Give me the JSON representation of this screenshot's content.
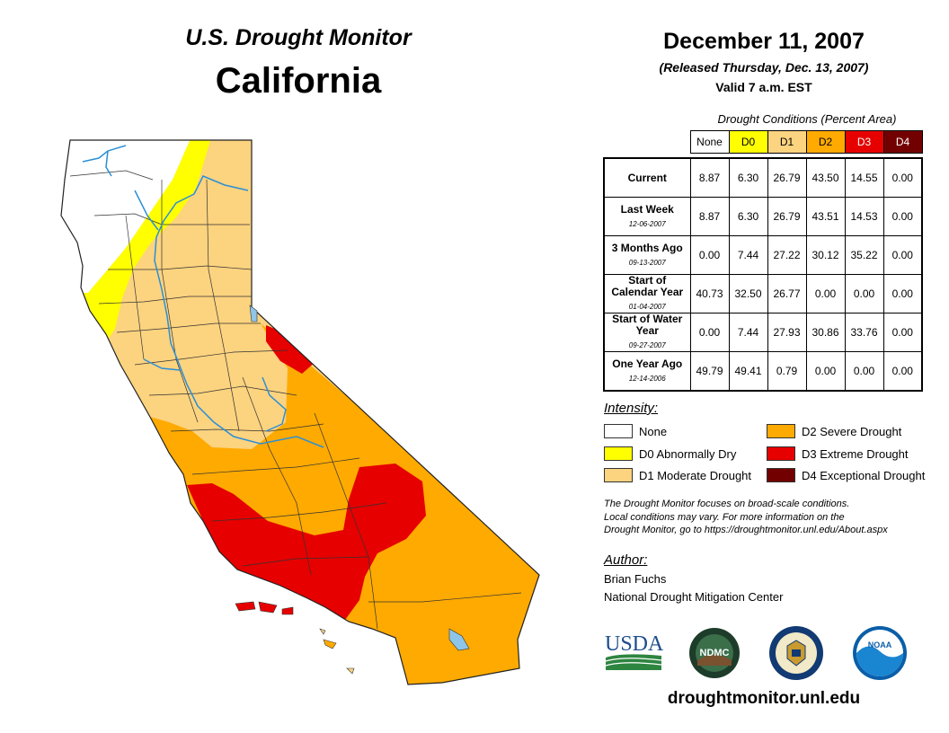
{
  "header": {
    "monitor_title": "U.S. Drought Monitor",
    "region": "California",
    "date": "December 11, 2007",
    "released": "(Released Thursday, Dec. 13, 2007)",
    "valid": "Valid 7 a.m. EST"
  },
  "table": {
    "caption": "Drought Conditions (Percent Area)",
    "columns": [
      {
        "label": "None",
        "color": "#ffffff"
      },
      {
        "label": "D0",
        "color": "#ffff00"
      },
      {
        "label": "D1",
        "color": "#fcd37f"
      },
      {
        "label": "D2",
        "color": "#ffaa00"
      },
      {
        "label": "D3",
        "color": "#e60000"
      },
      {
        "label": "D4",
        "color": "#730000"
      }
    ],
    "rows": [
      {
        "label": "Current",
        "date": "",
        "values": [
          "8.87",
          "6.30",
          "26.79",
          "43.50",
          "14.55",
          "0.00"
        ]
      },
      {
        "label": "Last Week",
        "date": "12-06-2007",
        "values": [
          "8.87",
          "6.30",
          "26.79",
          "43.51",
          "14.53",
          "0.00"
        ]
      },
      {
        "label": "3 Months Ago",
        "date": "09-13-2007",
        "values": [
          "0.00",
          "7.44",
          "27.22",
          "30.12",
          "35.22",
          "0.00"
        ]
      },
      {
        "label": "Start of Calendar Year",
        "date": "01-04-2007",
        "values": [
          "40.73",
          "32.50",
          "26.77",
          "0.00",
          "0.00",
          "0.00"
        ]
      },
      {
        "label": "Start of Water Year",
        "date": "09-27-2007",
        "values": [
          "0.00",
          "7.44",
          "27.93",
          "30.86",
          "33.76",
          "0.00"
        ]
      },
      {
        "label": "One Year Ago",
        "date": "12-14-2006",
        "values": [
          "49.79",
          "49.41",
          "0.79",
          "0.00",
          "0.00",
          "0.00"
        ]
      }
    ]
  },
  "legend": {
    "title": "Intensity:",
    "items": [
      {
        "label": "None",
        "color": "#ffffff"
      },
      {
        "label": "D0 Abnormally Dry",
        "color": "#ffff00"
      },
      {
        "label": "D1 Moderate Drought",
        "color": "#fcd37f"
      },
      {
        "label": "D2 Severe Drought",
        "color": "#ffaa00"
      },
      {
        "label": "D3 Extreme Drought",
        "color": "#e60000"
      },
      {
        "label": "D4 Exceptional Drought",
        "color": "#730000"
      }
    ]
  },
  "note": {
    "line1": "The Drought Monitor focuses on broad-scale conditions.",
    "line2": "Local conditions may vary. For more information on the",
    "line3": "Drought Monitor, go to https://droughtmonitor.unl.edu/About.aspx"
  },
  "author": {
    "title": "Author:",
    "name": "Brian Fuchs",
    "org": "National Drought Mitigation Center"
  },
  "logos": {
    "usda": "USDA",
    "ndmc": "NDMC",
    "noaa": "NOAA",
    "usda_icon": "usda-logo",
    "ndmc_icon": "ndmc-logo",
    "commerce_icon": "department-of-commerce-seal",
    "noaa_icon": "noaa-logo"
  },
  "website": "droughtmonitor.unl.edu",
  "colors": {
    "water": "#8ec6ea",
    "river": "#2b8fd6",
    "county_border": "#333333"
  }
}
